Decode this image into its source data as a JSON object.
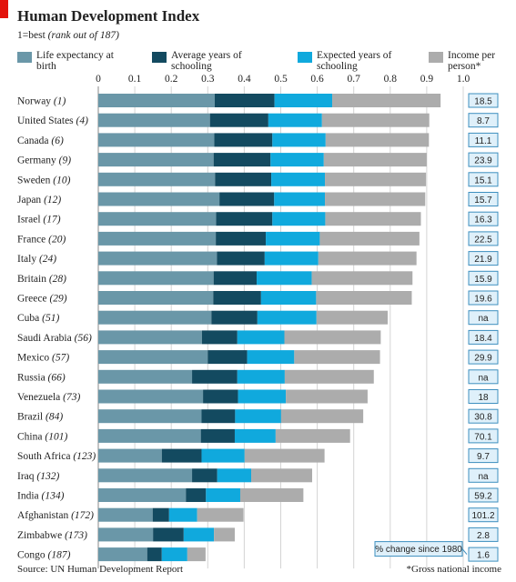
{
  "title": "Human Development Index",
  "subtitle": {
    "main": "1=best",
    "note": "(rank out of 187)"
  },
  "legend": [
    {
      "label": "Life expectancy at birth",
      "color": "#6a97a8"
    },
    {
      "label": "Average years of schooling",
      "color": "#134a60"
    },
    {
      "label": "Expected years of schooling",
      "color": "#10a9dd"
    },
    {
      "label": "Income per person*",
      "color": "#acacac"
    }
  ],
  "change_label": "% change since 1980",
  "source": "Source: UN Human Development Report",
  "footnote": "*Gross national income",
  "chart_data": {
    "type": "bar",
    "stacked": true,
    "orientation": "horizontal",
    "xlim": [
      0,
      1.0
    ],
    "x_ticks": [
      "0",
      "0.1",
      "0.2",
      "0.3",
      "0.4",
      "0.5",
      "0.6",
      "0.7",
      "0.8",
      "0.9",
      "1.0"
    ],
    "grid": true,
    "legend_position": "top",
    "categories": [
      {
        "country": "Norway",
        "rank": "(1)"
      },
      {
        "country": "United States",
        "rank": "(4)"
      },
      {
        "country": "Canada",
        "rank": "(6)"
      },
      {
        "country": "Germany",
        "rank": "(9)"
      },
      {
        "country": "Sweden",
        "rank": "(10)"
      },
      {
        "country": "Japan",
        "rank": "(12)"
      },
      {
        "country": "Israel",
        "rank": "(17)"
      },
      {
        "country": "France",
        "rank": "(20)"
      },
      {
        "country": "Italy",
        "rank": "(24)"
      },
      {
        "country": "Britain",
        "rank": "(28)"
      },
      {
        "country": "Greece",
        "rank": "(29)"
      },
      {
        "country": "Cuba",
        "rank": "(51)"
      },
      {
        "country": "Saudi Arabia",
        "rank": "(56)"
      },
      {
        "country": "Mexico",
        "rank": "(57)"
      },
      {
        "country": "Russia",
        "rank": "(66)"
      },
      {
        "country": "Venezuela",
        "rank": "(73)"
      },
      {
        "country": "Brazil",
        "rank": "(84)"
      },
      {
        "country": "China",
        "rank": "(101)"
      },
      {
        "country": "South Africa",
        "rank": "(123)"
      },
      {
        "country": "Iraq",
        "rank": "(132)"
      },
      {
        "country": "India",
        "rank": "(134)"
      },
      {
        "country": "Afghanistan",
        "rank": "(172)"
      },
      {
        "country": "Zimbabwe",
        "rank": "(173)"
      },
      {
        "country": "Congo",
        "rank": "(187)"
      }
    ],
    "series": [
      {
        "name": "Life expectancy at birth",
        "values": [
          0.319,
          0.306,
          0.318,
          0.316,
          0.32,
          0.332,
          0.323,
          0.322,
          0.325,
          0.316,
          0.315,
          0.31,
          0.284,
          0.3,
          0.257,
          0.287,
          0.283,
          0.281,
          0.174,
          0.257,
          0.24,
          0.149,
          0.15,
          0.134
        ]
      },
      {
        "name": "Average years of schooling",
        "values": [
          0.164,
          0.16,
          0.159,
          0.156,
          0.154,
          0.15,
          0.154,
          0.137,
          0.131,
          0.118,
          0.131,
          0.126,
          0.097,
          0.108,
          0.124,
          0.096,
          0.092,
          0.093,
          0.109,
          0.069,
          0.055,
          0.045,
          0.084,
          0.04
        ]
      },
      {
        "name": "Expected years of schooling",
        "values": [
          0.158,
          0.147,
          0.146,
          0.146,
          0.147,
          0.139,
          0.145,
          0.148,
          0.147,
          0.151,
          0.151,
          0.162,
          0.129,
          0.129,
          0.13,
          0.131,
          0.126,
          0.112,
          0.118,
          0.093,
          0.094,
          0.077,
          0.083,
          0.07
        ]
      },
      {
        "name": "Income per person*",
        "values": [
          0.297,
          0.294,
          0.283,
          0.282,
          0.277,
          0.275,
          0.262,
          0.273,
          0.269,
          0.276,
          0.262,
          0.195,
          0.264,
          0.235,
          0.244,
          0.224,
          0.225,
          0.204,
          0.219,
          0.167,
          0.173,
          0.127,
          0.057,
          0.05
        ]
      }
    ],
    "income_change_since_1980": [
      "18.5",
      "8.7",
      "11.1",
      "23.9",
      "15.1",
      "15.7",
      "16.3",
      "22.5",
      "21.9",
      "15.9",
      "19.6",
      "na",
      "18.4",
      "29.9",
      "na",
      "18",
      "30.8",
      "70.1",
      "9.7",
      "na",
      "59.2",
      "101.2",
      "2.8",
      "1.6"
    ]
  }
}
